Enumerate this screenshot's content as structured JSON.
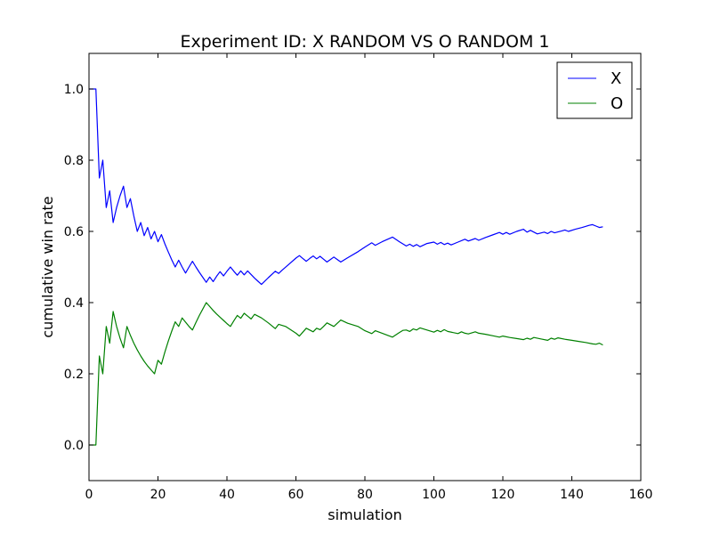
{
  "chart_data": {
    "type": "line",
    "title": "Experiment ID: X RANDOM VS O RANDOM 1",
    "xlabel": "simulation",
    "ylabel": "cumulative win rate",
    "xlim": [
      0,
      160
    ],
    "ylim": [
      -0.1,
      1.1
    ],
    "xticks": [
      0,
      20,
      40,
      60,
      80,
      100,
      120,
      140,
      160
    ],
    "yticks": [
      0.0,
      0.2,
      0.4,
      0.6,
      0.8,
      1.0
    ],
    "xtick_labels": [
      "0",
      "20",
      "40",
      "60",
      "80",
      "100",
      "120",
      "140",
      "160"
    ],
    "ytick_labels": [
      "0.0",
      "0.2",
      "0.4",
      "0.6",
      "0.8",
      "1.0"
    ],
    "grid": false,
    "legend_position": "upper right",
    "series": [
      {
        "name": "X",
        "color": "#0000ff",
        "points": [
          [
            0,
            1.0
          ],
          [
            1,
            1.0
          ],
          [
            2,
            1.0
          ],
          [
            3,
            0.75
          ],
          [
            4,
            0.8
          ],
          [
            5,
            0.667
          ],
          [
            6,
            0.714
          ],
          [
            7,
            0.625
          ],
          [
            8,
            0.667
          ],
          [
            9,
            0.7
          ],
          [
            10,
            0.727
          ],
          [
            11,
            0.667
          ],
          [
            12,
            0.692
          ],
          [
            13,
            0.643
          ],
          [
            14,
            0.6
          ],
          [
            15,
            0.625
          ],
          [
            16,
            0.588
          ],
          [
            17,
            0.611
          ],
          [
            18,
            0.579
          ],
          [
            19,
            0.6
          ],
          [
            20,
            0.571
          ],
          [
            21,
            0.591
          ],
          [
            22,
            0.565
          ],
          [
            23,
            0.542
          ],
          [
            24,
            0.52
          ],
          [
            25,
            0.5
          ],
          [
            26,
            0.519
          ],
          [
            27,
            0.5
          ],
          [
            28,
            0.483
          ],
          [
            29,
            0.5
          ],
          [
            30,
            0.516
          ],
          [
            31,
            0.5
          ],
          [
            32,
            0.485
          ],
          [
            33,
            0.471
          ],
          [
            34,
            0.457
          ],
          [
            35,
            0.472
          ],
          [
            36,
            0.459
          ],
          [
            37,
            0.474
          ],
          [
            38,
            0.487
          ],
          [
            39,
            0.475
          ],
          [
            40,
            0.488
          ],
          [
            41,
            0.5
          ],
          [
            42,
            0.488
          ],
          [
            43,
            0.477
          ],
          [
            44,
            0.489
          ],
          [
            45,
            0.478
          ],
          [
            46,
            0.489
          ],
          [
            47,
            0.479
          ],
          [
            48,
            0.469
          ],
          [
            49,
            0.46
          ],
          [
            50,
            0.451
          ],
          [
            52,
            0.47
          ],
          [
            54,
            0.488
          ],
          [
            55,
            0.482
          ],
          [
            56,
            0.491
          ],
          [
            58,
            0.508
          ],
          [
            60,
            0.525
          ],
          [
            61,
            0.532
          ],
          [
            62,
            0.524
          ],
          [
            63,
            0.516
          ],
          [
            64,
            0.524
          ],
          [
            65,
            0.531
          ],
          [
            66,
            0.523
          ],
          [
            67,
            0.53
          ],
          [
            68,
            0.522
          ],
          [
            69,
            0.514
          ],
          [
            70,
            0.521
          ],
          [
            71,
            0.528
          ],
          [
            72,
            0.521
          ],
          [
            73,
            0.514
          ],
          [
            75,
            0.526
          ],
          [
            78,
            0.543
          ],
          [
            80,
            0.556
          ],
          [
            82,
            0.568
          ],
          [
            83,
            0.561
          ],
          [
            85,
            0.571
          ],
          [
            88,
            0.584
          ],
          [
            90,
            0.571
          ],
          [
            92,
            0.559
          ],
          [
            93,
            0.564
          ],
          [
            94,
            0.558
          ],
          [
            95,
            0.563
          ],
          [
            96,
            0.557
          ],
          [
            98,
            0.566
          ],
          [
            100,
            0.57
          ],
          [
            101,
            0.564
          ],
          [
            102,
            0.569
          ],
          [
            103,
            0.563
          ],
          [
            104,
            0.567
          ],
          [
            105,
            0.562
          ],
          [
            107,
            0.57
          ],
          [
            109,
            0.578
          ],
          [
            110,
            0.573
          ],
          [
            112,
            0.58
          ],
          [
            113,
            0.575
          ],
          [
            115,
            0.583
          ],
          [
            117,
            0.59
          ],
          [
            119,
            0.597
          ],
          [
            120,
            0.592
          ],
          [
            121,
            0.597
          ],
          [
            122,
            0.592
          ],
          [
            124,
            0.6
          ],
          [
            126,
            0.606
          ],
          [
            127,
            0.598
          ],
          [
            128,
            0.603
          ],
          [
            130,
            0.593
          ],
          [
            132,
            0.598
          ],
          [
            133,
            0.594
          ],
          [
            134,
            0.6
          ],
          [
            135,
            0.596
          ],
          [
            137,
            0.601
          ],
          [
            138,
            0.604
          ],
          [
            139,
            0.6
          ],
          [
            141,
            0.606
          ],
          [
            143,
            0.611
          ],
          [
            145,
            0.617
          ],
          [
            146,
            0.619
          ],
          [
            147,
            0.615
          ],
          [
            148,
            0.611
          ],
          [
            149,
            0.613
          ]
        ]
      },
      {
        "name": "O",
        "color": "#008000",
        "points": [
          [
            0,
            0.0
          ],
          [
            1,
            0.0
          ],
          [
            2,
            0.0
          ],
          [
            3,
            0.25
          ],
          [
            4,
            0.2
          ],
          [
            5,
            0.333
          ],
          [
            6,
            0.286
          ],
          [
            7,
            0.375
          ],
          [
            8,
            0.333
          ],
          [
            9,
            0.3
          ],
          [
            10,
            0.273
          ],
          [
            11,
            0.333
          ],
          [
            12,
            0.308
          ],
          [
            13,
            0.286
          ],
          [
            14,
            0.267
          ],
          [
            15,
            0.25
          ],
          [
            16,
            0.235
          ],
          [
            17,
            0.222
          ],
          [
            18,
            0.211
          ],
          [
            19,
            0.2
          ],
          [
            20,
            0.238
          ],
          [
            21,
            0.227
          ],
          [
            22,
            0.261
          ],
          [
            23,
            0.292
          ],
          [
            24,
            0.32
          ],
          [
            25,
            0.346
          ],
          [
            26,
            0.333
          ],
          [
            27,
            0.357
          ],
          [
            28,
            0.345
          ],
          [
            29,
            0.333
          ],
          [
            30,
            0.323
          ],
          [
            31,
            0.344
          ],
          [
            32,
            0.364
          ],
          [
            33,
            0.382
          ],
          [
            34,
            0.4
          ],
          [
            35,
            0.389
          ],
          [
            36,
            0.378
          ],
          [
            37,
            0.368
          ],
          [
            38,
            0.359
          ],
          [
            39,
            0.35
          ],
          [
            40,
            0.341
          ],
          [
            41,
            0.333
          ],
          [
            42,
            0.349
          ],
          [
            43,
            0.364
          ],
          [
            44,
            0.356
          ],
          [
            45,
            0.37
          ],
          [
            46,
            0.362
          ],
          [
            47,
            0.354
          ],
          [
            48,
            0.367
          ],
          [
            50,
            0.357
          ],
          [
            52,
            0.343
          ],
          [
            54,
            0.327
          ],
          [
            55,
            0.339
          ],
          [
            57,
            0.333
          ],
          [
            60,
            0.314
          ],
          [
            61,
            0.306
          ],
          [
            62,
            0.317
          ],
          [
            63,
            0.328
          ],
          [
            64,
            0.323
          ],
          [
            65,
            0.318
          ],
          [
            66,
            0.328
          ],
          [
            67,
            0.324
          ],
          [
            68,
            0.333
          ],
          [
            69,
            0.343
          ],
          [
            70,
            0.338
          ],
          [
            71,
            0.333
          ],
          [
            72,
            0.342
          ],
          [
            73,
            0.351
          ],
          [
            75,
            0.342
          ],
          [
            78,
            0.333
          ],
          [
            80,
            0.321
          ],
          [
            82,
            0.313
          ],
          [
            83,
            0.321
          ],
          [
            85,
            0.314
          ],
          [
            88,
            0.303
          ],
          [
            90,
            0.316
          ],
          [
            91,
            0.322
          ],
          [
            92,
            0.323
          ],
          [
            93,
            0.319
          ],
          [
            94,
            0.326
          ],
          [
            95,
            0.323
          ],
          [
            96,
            0.329
          ],
          [
            98,
            0.323
          ],
          [
            100,
            0.317
          ],
          [
            101,
            0.322
          ],
          [
            102,
            0.318
          ],
          [
            103,
            0.324
          ],
          [
            104,
            0.319
          ],
          [
            107,
            0.313
          ],
          [
            108,
            0.318
          ],
          [
            109,
            0.314
          ],
          [
            110,
            0.312
          ],
          [
            112,
            0.318
          ],
          [
            113,
            0.314
          ],
          [
            115,
            0.311
          ],
          [
            117,
            0.307
          ],
          [
            119,
            0.303
          ],
          [
            120,
            0.306
          ],
          [
            122,
            0.302
          ],
          [
            124,
            0.299
          ],
          [
            126,
            0.296
          ],
          [
            127,
            0.3
          ],
          [
            128,
            0.297
          ],
          [
            129,
            0.302
          ],
          [
            131,
            0.298
          ],
          [
            133,
            0.294
          ],
          [
            134,
            0.3
          ],
          [
            135,
            0.297
          ],
          [
            136,
            0.301
          ],
          [
            138,
            0.297
          ],
          [
            140,
            0.294
          ],
          [
            142,
            0.291
          ],
          [
            144,
            0.288
          ],
          [
            146,
            0.284
          ],
          [
            147,
            0.283
          ],
          [
            148,
            0.286
          ],
          [
            149,
            0.281
          ]
        ]
      }
    ]
  }
}
